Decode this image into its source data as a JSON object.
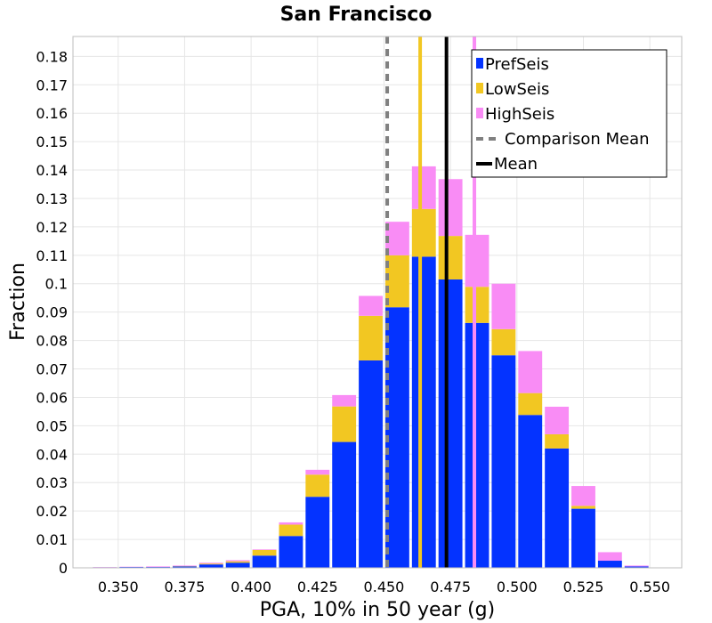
{
  "chart_data": {
    "type": "bar",
    "stacked": true,
    "title": "San Francisco",
    "xlabel": "PGA, 10% in 50 year (g)",
    "ylabel": "Fraction",
    "xlim": [
      0.333,
      0.562
    ],
    "ylim": [
      0,
      0.187
    ],
    "bin_width": 0.01,
    "x_ticks": [
      "0.350",
      "0.375",
      "0.400",
      "0.425",
      "0.450",
      "0.475",
      "0.500",
      "0.525",
      "0.550"
    ],
    "y_ticks": [
      "0",
      "0.01",
      "0.02",
      "0.03",
      "0.04",
      "0.05",
      "0.06",
      "0.07",
      "0.08",
      "0.09",
      "0.1",
      "0.11",
      "0.12",
      "0.13",
      "0.14",
      "0.15",
      "0.16",
      "0.17",
      "0.18"
    ],
    "grid": true,
    "legend_position": "top-right",
    "x": [
      0.345,
      0.355,
      0.365,
      0.375,
      0.385,
      0.395,
      0.405,
      0.415,
      0.425,
      0.435,
      0.445,
      0.455,
      0.465,
      0.475,
      0.485,
      0.495,
      0.505,
      0.515,
      0.525,
      0.535,
      0.545
    ],
    "series": [
      {
        "name": "PrefSeis",
        "color": "#0433ff",
        "values": [
          0.0002,
          0.0003,
          0.0003,
          0.0005,
          0.0012,
          0.0018,
          0.0043,
          0.0112,
          0.025,
          0.0443,
          0.073,
          0.0917,
          0.1095,
          0.1015,
          0.0862,
          0.0748,
          0.0538,
          0.042,
          0.0208,
          0.0025,
          0.0005
        ]
      },
      {
        "name": "LowSeis",
        "color": "#f2c722",
        "values": [
          0.0,
          0.0,
          0.0,
          0.0001,
          0.0003,
          0.0005,
          0.002,
          0.004,
          0.0078,
          0.0125,
          0.0157,
          0.0183,
          0.0168,
          0.0153,
          0.0127,
          0.0092,
          0.0077,
          0.005,
          0.001,
          0.0,
          0.0
        ]
      },
      {
        "name": "HighSeis",
        "color": "#f98cf5",
        "values": [
          0.0001,
          0.0001,
          0.0002,
          0.0002,
          0.0003,
          0.0004,
          0.0002,
          0.0008,
          0.0017,
          0.004,
          0.007,
          0.0118,
          0.015,
          0.02,
          0.0183,
          0.016,
          0.0148,
          0.0097,
          0.007,
          0.003,
          0.0003
        ]
      }
    ],
    "vertical_lines": [
      {
        "name": "Comparison Mean",
        "x": 0.4512,
        "color": "#808080",
        "style": "dashed",
        "in_legend": true
      },
      {
        "name": "Mean",
        "x": 0.4735,
        "color": "#000000",
        "style": "solid",
        "in_legend": true
      },
      {
        "name": "LowSeis Mean",
        "x": 0.4636,
        "color": "#f2c722",
        "style": "solid",
        "in_legend": false
      },
      {
        "name": "HighSeis Mean",
        "x": 0.484,
        "color": "#f98cf5",
        "style": "solid",
        "in_legend": false
      }
    ]
  }
}
